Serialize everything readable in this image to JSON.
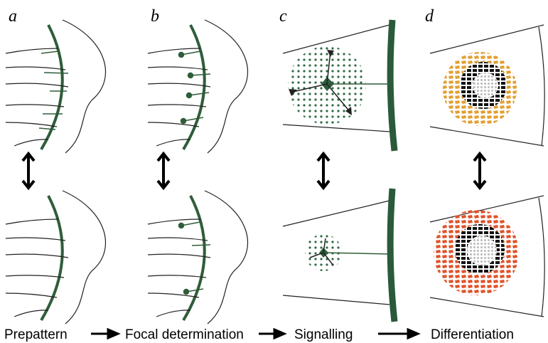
{
  "panels": [
    {
      "label": "a",
      "caption": "Prepattern"
    },
    {
      "label": "b",
      "caption": "Focal determination"
    },
    {
      "label": "c",
      "caption": "Signalling"
    },
    {
      "label": "d",
      "caption": "Differentiation"
    }
  ]
}
